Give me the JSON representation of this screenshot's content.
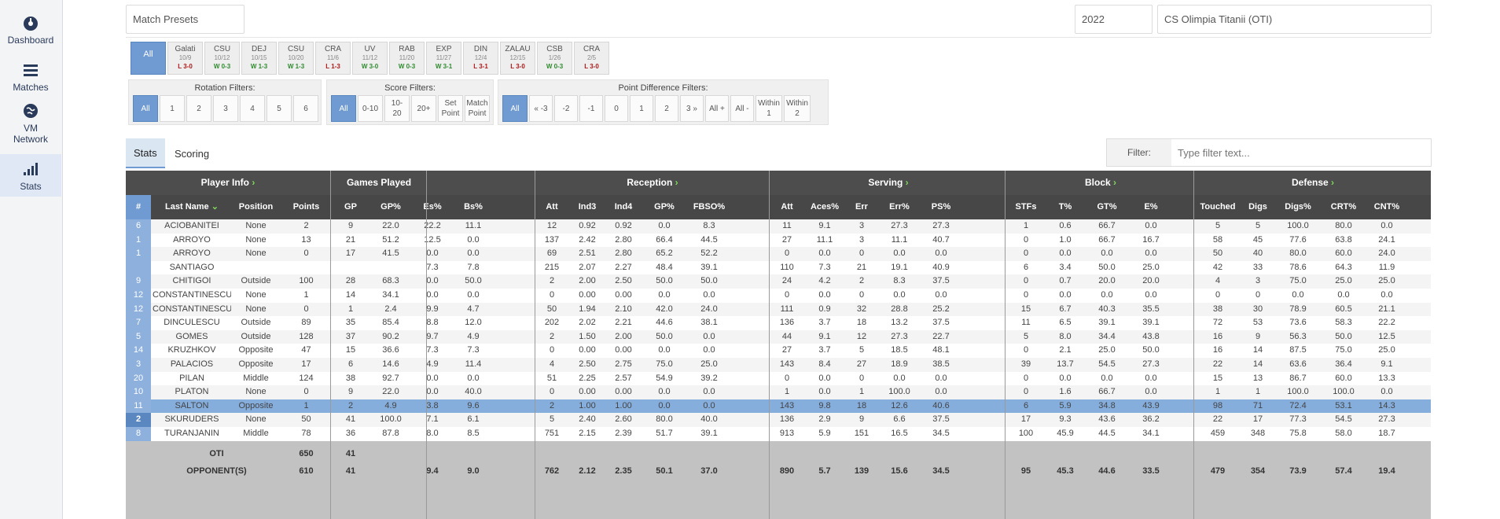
{
  "sidebar": {
    "items": [
      {
        "label": "Dashboard",
        "icon": "dashboard-icon"
      },
      {
        "label": "Matches",
        "icon": "list-icon"
      },
      {
        "label": "VM Network",
        "icon": "globe-icon"
      },
      {
        "label": "Stats",
        "icon": "signal-bars-icon"
      }
    ]
  },
  "top": {
    "presets_label": "Match Presets",
    "year": "2022",
    "team": "CS Olimpia Titanii (OTI)"
  },
  "matches": [
    {
      "label": "All"
    },
    {
      "label": "Galati",
      "date": "10/9",
      "result": "L 3-0",
      "win": false
    },
    {
      "label": "CSU",
      "date": "10/12",
      "result": "W 0-3",
      "win": true
    },
    {
      "label": "DEJ",
      "date": "10/15",
      "result": "W 1-3",
      "win": true
    },
    {
      "label": "CSU",
      "date": "10/20",
      "result": "W 1-3",
      "win": true
    },
    {
      "label": "CRA",
      "date": "11/6",
      "result": "L 1-3",
      "win": false
    },
    {
      "label": "UV",
      "date": "11/12",
      "result": "W 3-0",
      "win": true
    },
    {
      "label": "RAB",
      "date": "11/20",
      "result": "W 0-3",
      "win": true
    },
    {
      "label": "EXP",
      "date": "11/27",
      "result": "W 3-1",
      "win": true
    },
    {
      "label": "DIN",
      "date": "12/4",
      "result": "L 3-1",
      "win": false
    },
    {
      "label": "ZALAU",
      "date": "12/15",
      "result": "L 3-0",
      "win": false
    },
    {
      "label": "CSB",
      "date": "1/26",
      "result": "W 0-3",
      "win": true
    },
    {
      "label": "CRA",
      "date": "2/5",
      "result": "L 3-0",
      "win": false
    }
  ],
  "filters": {
    "rotation": {
      "title": "Rotation Filters:",
      "buttons": [
        "All",
        "1",
        "2",
        "3",
        "4",
        "5",
        "6"
      ]
    },
    "score": {
      "title": "Score Filters:",
      "buttons": [
        "All",
        "0-10",
        "10-20",
        "20+",
        "Set Point",
        "Match Point"
      ]
    },
    "point_diff": {
      "title": "Point Difference Filters:",
      "buttons": [
        "All",
        "« -3",
        "-2",
        "-1",
        "0",
        "1",
        "2",
        "3 »",
        "All +",
        "All -",
        "Within 1",
        "Within 2"
      ]
    }
  },
  "tabs": [
    "Stats",
    "Scoring"
  ],
  "filter_box": {
    "label": "Filter:",
    "placeholder": "Type filter text..."
  },
  "table": {
    "groups": [
      "Player Info",
      "Games Played",
      "",
      "Reception",
      "Serving",
      "Block",
      "Defense"
    ],
    "columns": [
      "#",
      "Last Name",
      "Position",
      "Points",
      "GP",
      "GP%",
      "Es%",
      "Bs%",
      "Att",
      "Ind3",
      "Ind4",
      "GP%",
      "FBSO%",
      "Att",
      "Aces%",
      "Err",
      "Err%",
      "PS%",
      "STFs",
      "T%",
      "GT%",
      "E%",
      "Touched",
      "Digs",
      "Digs%",
      "CRT%",
      "CNT%"
    ],
    "rows": [
      [
        "6",
        "ACIOBANITEI",
        "None",
        "2",
        "9",
        "22.0",
        "22.2",
        "11.1",
        "12",
        "0.92",
        "0.92",
        "0.0",
        "8.3",
        "11",
        "9.1",
        "3",
        "27.3",
        "27.3",
        "1",
        "0.6",
        "66.7",
        "0.0",
        "5",
        "5",
        "100.0",
        "80.0",
        "0.0"
      ],
      [
        "1",
        "ARROYO",
        "None",
        "13",
        "21",
        "51.2",
        "12.5",
        "0.0",
        "137",
        "2.42",
        "2.80",
        "66.4",
        "44.5",
        "27",
        "11.1",
        "3",
        "11.1",
        "40.7",
        "0",
        "1.0",
        "66.7",
        "16.7",
        "58",
        "45",
        "77.6",
        "63.8",
        "24.1"
      ],
      [
        "1",
        "ARROYO",
        "None",
        "0",
        "17",
        "41.5",
        "0.0",
        "0.0",
        "69",
        "2.51",
        "2.80",
        "65.2",
        "52.2",
        "0",
        "0.0",
        "0",
        "0.0",
        "0.0",
        "0",
        "0.0",
        "0.0",
        "0.0",
        "50",
        "40",
        "80.0",
        "60.0",
        "24.0"
      ],
      [
        "",
        "SANTIAGO",
        "",
        "",
        "",
        "",
        "7.3",
        "7.8",
        "215",
        "2.07",
        "2.27",
        "48.4",
        "39.1",
        "110",
        "7.3",
        "21",
        "19.1",
        "40.9",
        "6",
        "3.4",
        "50.0",
        "25.0",
        "42",
        "33",
        "78.6",
        "64.3",
        "11.9"
      ],
      [
        "9",
        "CHITIGOI",
        "Outside",
        "100",
        "28",
        "68.3",
        "0.0",
        "50.0",
        "2",
        "2.00",
        "2.50",
        "50.0",
        "50.0",
        "24",
        "4.2",
        "2",
        "8.3",
        "37.5",
        "0",
        "0.7",
        "20.0",
        "20.0",
        "4",
        "3",
        "75.0",
        "25.0",
        "25.0"
      ],
      [
        "12",
        "CONSTANTINESCU",
        "None",
        "1",
        "14",
        "34.1",
        "0.0",
        "0.0",
        "0",
        "0.00",
        "0.00",
        "0.0",
        "0.0",
        "0",
        "0.0",
        "0",
        "0.0",
        "0.0",
        "0",
        "0.0",
        "0.0",
        "0.0",
        "0",
        "0",
        "0.0",
        "0.0",
        "0.0"
      ],
      [
        "12",
        "CONSTANTINESCU",
        "None",
        "0",
        "1",
        "2.4",
        "9.9",
        "4.7",
        "50",
        "1.94",
        "2.10",
        "42.0",
        "24.0",
        "111",
        "0.9",
        "32",
        "28.8",
        "25.2",
        "15",
        "6.7",
        "40.3",
        "35.5",
        "38",
        "30",
        "78.9",
        "60.5",
        "21.1"
      ],
      [
        "7",
        "DINCULESCU",
        "Outside",
        "89",
        "35",
        "85.4",
        "8.8",
        "12.0",
        "202",
        "2.02",
        "2.21",
        "44.6",
        "38.1",
        "136",
        "3.7",
        "18",
        "13.2",
        "37.5",
        "11",
        "6.5",
        "39.1",
        "39.1",
        "72",
        "53",
        "73.6",
        "58.3",
        "22.2"
      ],
      [
        "5",
        "GOMES",
        "Outside",
        "128",
        "37",
        "90.2",
        "9.7",
        "4.9",
        "2",
        "1.50",
        "2.00",
        "50.0",
        "0.0",
        "44",
        "9.1",
        "12",
        "27.3",
        "22.7",
        "5",
        "8.0",
        "34.4",
        "43.8",
        "16",
        "9",
        "56.3",
        "50.0",
        "12.5"
      ],
      [
        "14",
        "KRUZHKOV",
        "Opposite",
        "47",
        "15",
        "36.6",
        "7.3",
        "7.3",
        "0",
        "0.00",
        "0.00",
        "0.0",
        "0.0",
        "27",
        "3.7",
        "5",
        "18.5",
        "48.1",
        "0",
        "2.1",
        "25.0",
        "50.0",
        "16",
        "14",
        "87.5",
        "75.0",
        "25.0"
      ],
      [
        "3",
        "PALACIOS",
        "Opposite",
        "17",
        "6",
        "14.6",
        "4.9",
        "11.4",
        "4",
        "2.50",
        "2.75",
        "75.0",
        "25.0",
        "143",
        "8.4",
        "27",
        "18.9",
        "38.5",
        "39",
        "13.7",
        "54.5",
        "27.3",
        "22",
        "14",
        "63.6",
        "36.4",
        "9.1"
      ],
      [
        "20",
        "PILAN",
        "Middle",
        "124",
        "38",
        "92.7",
        "0.0",
        "0.0",
        "51",
        "2.25",
        "2.57",
        "54.9",
        "39.2",
        "0",
        "0.0",
        "0",
        "0.0",
        "0.0",
        "0",
        "0.0",
        "0.0",
        "0.0",
        "15",
        "13",
        "86.7",
        "60.0",
        "13.3"
      ],
      [
        "10",
        "PLATON",
        "None",
        "0",
        "9",
        "22.0",
        "0.0",
        "40.0",
        "0",
        "0.00",
        "0.00",
        "0.0",
        "0.0",
        "1",
        "0.0",
        "1",
        "100.0",
        "0.0",
        "0",
        "1.6",
        "66.7",
        "0.0",
        "1",
        "1",
        "100.0",
        "100.0",
        "0.0"
      ],
      [
        "11",
        "SALTON",
        "Opposite",
        "1",
        "2",
        "4.9",
        "3.8",
        "9.6",
        "2",
        "1.00",
        "1.00",
        "0.0",
        "0.0",
        "143",
        "9.8",
        "18",
        "12.6",
        "40.6",
        "6",
        "5.9",
        "34.8",
        "43.9",
        "98",
        "71",
        "72.4",
        "53.1",
        "14.3"
      ],
      [
        "2",
        "SKURUDERS",
        "None",
        "50",
        "41",
        "100.0",
        "7.1",
        "6.1",
        "5",
        "2.40",
        "2.60",
        "80.0",
        "40.0",
        "136",
        "2.9",
        "9",
        "6.6",
        "37.5",
        "17",
        "9.3",
        "43.6",
        "36.2",
        "22",
        "17",
        "77.3",
        "54.5",
        "27.3"
      ],
      [
        "8",
        "TURANJANIN",
        "Middle",
        "78",
        "36",
        "87.8",
        "8.0",
        "8.5",
        "751",
        "2.15",
        "2.39",
        "51.7",
        "39.1",
        "913",
        "5.9",
        "151",
        "16.5",
        "34.5",
        "100",
        "45.9",
        "44.5",
        "34.1",
        "459",
        "348",
        "75.8",
        "58.0",
        "18.7"
      ]
    ],
    "total": {
      "label": "OTI",
      "points": "650",
      "gp": "41"
    },
    "total_row2": [
      "9.4",
      "9.0",
      "762",
      "2.12",
      "2.35",
      "50.1",
      "37.0",
      "890",
      "5.7",
      "139",
      "15.6",
      "34.5",
      "95",
      "45.3",
      "44.6",
      "33.5",
      "479",
      "354",
      "73.9",
      "57.4",
      "19.4"
    ],
    "opponent_label": "OPPONENT(S)",
    "opponent_points": "610",
    "opponent_gp": "41"
  },
  "colors": {
    "accent": "#6f9bd2",
    "header": "#474747",
    "win": "#2e8b2e",
    "loss": "#b01818"
  }
}
